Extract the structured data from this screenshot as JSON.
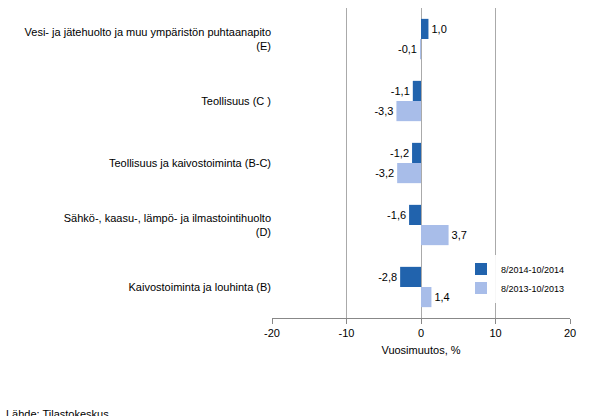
{
  "chart_data": {
    "type": "bar",
    "orientation": "horizontal",
    "categories": [
      "Vesi- ja jätehuolto ja muu ympäristön puhtaanapito (E)",
      "Teollisuus (C )",
      "Teollisuus ja kaivostoiminta (B-C)",
      "Sähkö-, kaasu-, lämpö- ja ilmastointihuolto (D)",
      "Kaivostoiminta ja louhinta (B)"
    ],
    "series": [
      {
        "name": "8/2014-10/2014",
        "color": "#2163ad",
        "values": [
          1.0,
          -1.1,
          -1.2,
          -1.6,
          -2.8
        ],
        "value_labels": [
          "1,0",
          "-1,1",
          "-1,2",
          "-1,6",
          "-2,8"
        ]
      },
      {
        "name": "8/2013-10/2013",
        "color": "#a8bde9",
        "values": [
          -0.1,
          -3.3,
          -3.2,
          3.7,
          1.4
        ],
        "value_labels": [
          "-0,1",
          "-3,3",
          "-3,2",
          "3,7",
          "1,4"
        ]
      }
    ],
    "x_label": "Vuosimuutos, %",
    "xlim": [
      -20,
      20
    ],
    "xticks": [
      -20,
      -10,
      0,
      10,
      20
    ],
    "grid": true,
    "legend": "lower right",
    "data_labels": true,
    "source": "Lähde: Tilastokeskus"
  }
}
